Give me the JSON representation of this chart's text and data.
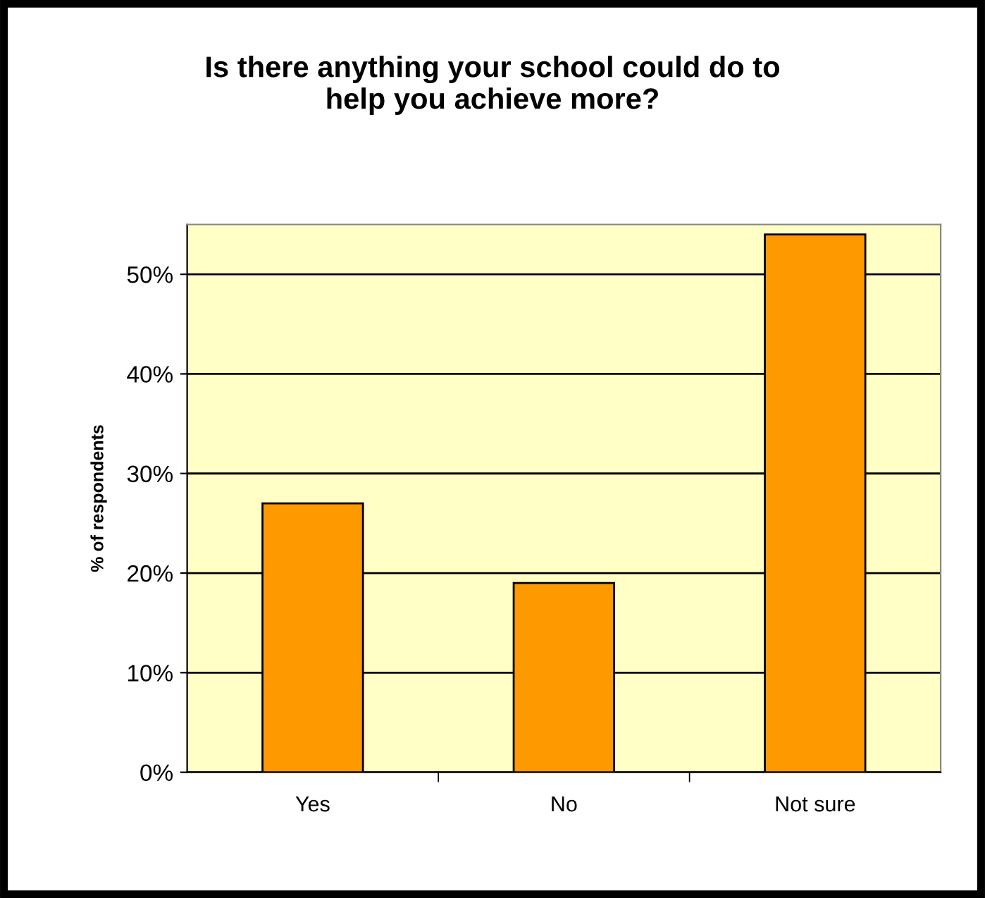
{
  "chart_data": {
    "type": "bar",
    "title": "Is there anything your school could do to\nhelp you achieve more?",
    "ylabel": "% of respondents",
    "categories": [
      "Yes",
      "No",
      "Not sure"
    ],
    "values": [
      27,
      19,
      54
    ],
    "color": "#ff9900",
    "ylim": [
      0,
      55
    ],
    "yticks": [
      {
        "value": 0,
        "label": "0%"
      },
      {
        "value": 10,
        "label": "10%"
      },
      {
        "value": 20,
        "label": "20%"
      },
      {
        "value": 30,
        "label": "30%"
      },
      {
        "value": 40,
        "label": "40%"
      },
      {
        "value": 50,
        "label": "50%"
      }
    ],
    "grid": "y"
  }
}
